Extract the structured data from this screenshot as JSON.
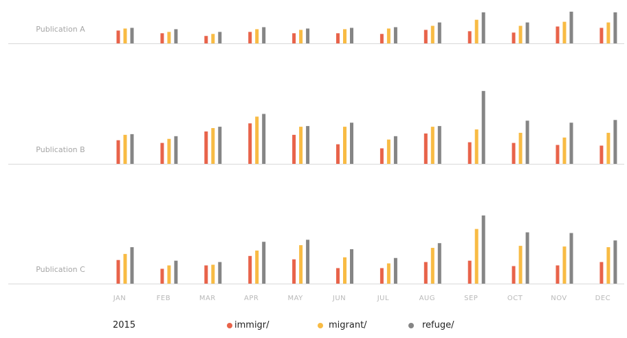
{
  "chart_data": {
    "type": "bar",
    "year": "2015",
    "categories": [
      "JAN",
      "FEB",
      "MAR",
      "APR",
      "MAY",
      "JUN",
      "JUL",
      "AUG",
      "SEP",
      "OCT",
      "NOV",
      "DEC"
    ],
    "colors": {
      "immigr/": "#e8634a",
      "migrant/": "#f8bb44",
      "refuge/": "#858585"
    },
    "legend": [
      "immigr/",
      "migrant/",
      "refuge/"
    ],
    "panels": [
      {
        "name": "Publication A",
        "series": [
          {
            "name": "immigr/",
            "values": [
              19,
              15,
              11,
              17,
              15,
              15,
              14,
              20,
              18,
              16,
              25,
              23
            ]
          },
          {
            "name": "migrant/",
            "values": [
              22,
              17,
              14,
              21,
              20,
              21,
              22,
              26,
              35,
              26,
              32,
              31
            ]
          },
          {
            "name": "refuge/",
            "values": [
              23,
              21,
              17,
              24,
              22,
              23,
              24,
              31,
              46,
              31,
              47,
              46
            ]
          }
        ]
      },
      {
        "name": "Publication B",
        "series": [
          {
            "name": "immigr/",
            "values": [
              35,
              31,
              48,
              60,
              43,
              29,
              23,
              45,
              32,
              31,
              28,
              27
            ]
          },
          {
            "name": "migrant/",
            "values": [
              43,
              37,
              53,
              70,
              55,
              55,
              36,
              55,
              51,
              46,
              39,
              46
            ]
          },
          {
            "name": "refuge/",
            "values": [
              44,
              41,
              55,
              74,
              56,
              61,
              41,
              56,
              108,
              64,
              61,
              65
            ]
          }
        ]
      },
      {
        "name": "Publication C",
        "series": [
          {
            "name": "immigr/",
            "values": [
              35,
              22,
              27,
              41,
              36,
              23,
              23,
              32,
              34,
              26,
              27,
              32
            ]
          },
          {
            "name": "migrant/",
            "values": [
              44,
              27,
              28,
              49,
              57,
              39,
              30,
              53,
              81,
              56,
              55,
              54
            ]
          },
          {
            "name": "refuge/",
            "values": [
              54,
              34,
              32,
              62,
              65,
              51,
              38,
              60,
              101,
              76,
              75,
              64
            ]
          }
        ]
      }
    ]
  }
}
